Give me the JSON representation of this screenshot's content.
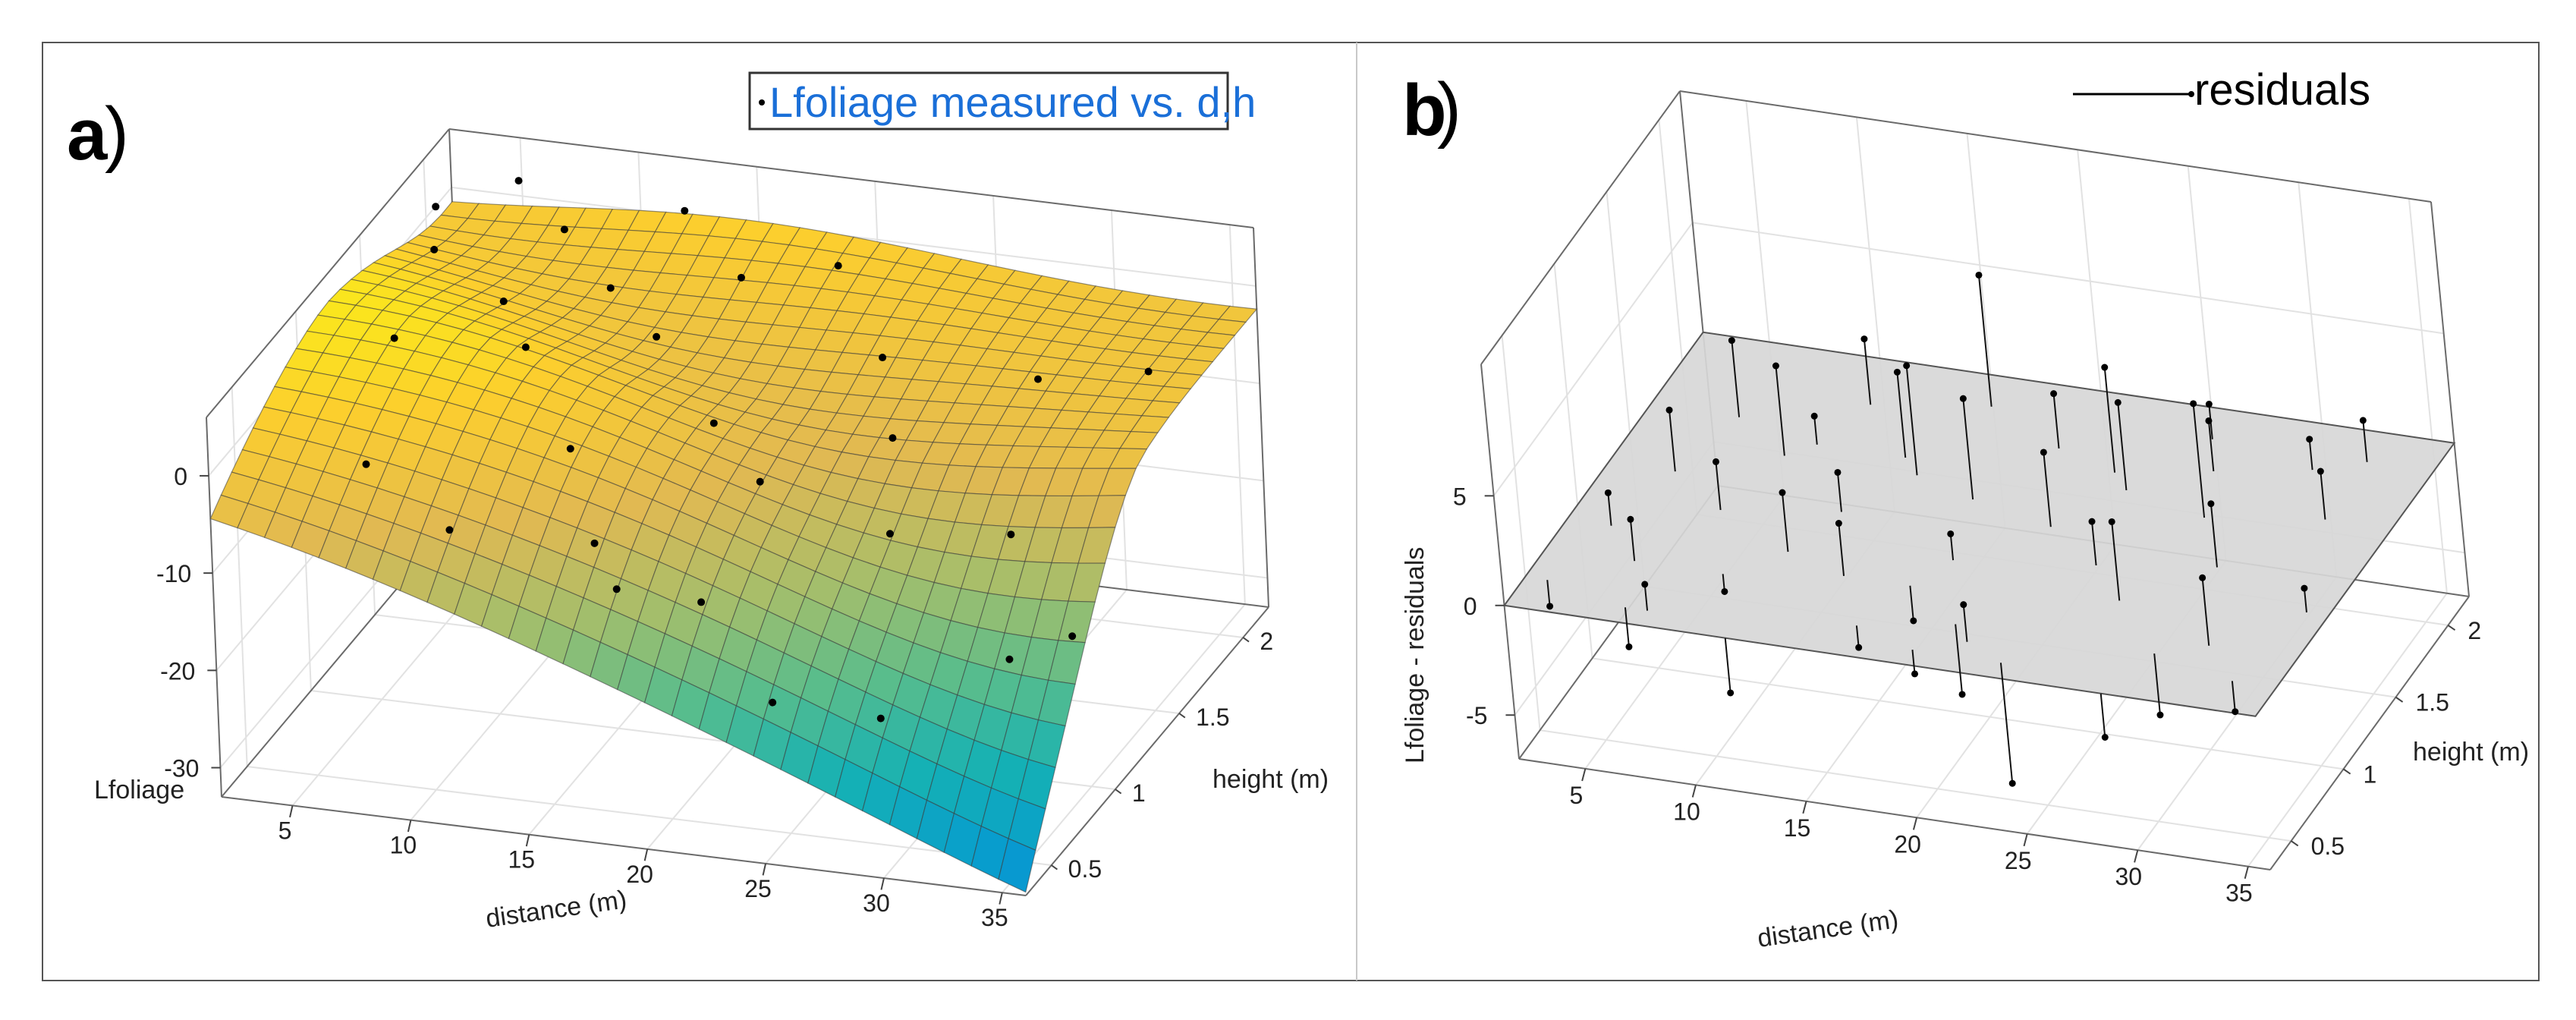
{
  "figure": {
    "panel_a_label": "a",
    "panel_b_label": "b"
  },
  "chart_data": [
    {
      "type": "surface3d",
      "panel": "a",
      "legend": "Lfoliage measured vs. d,h",
      "zlabel": "Lfoliage",
      "xlabel": "distance (m)",
      "ylabel": "height (m)",
      "x_ticks": [
        5,
        10,
        15,
        20,
        25,
        30,
        35
      ],
      "y_ticks": [
        0.5,
        1,
        1.5,
        2
      ],
      "z_ticks": [
        0,
        -10,
        -20,
        -30
      ],
      "xlim": [
        2,
        36
      ],
      "ylim": [
        0.3,
        2.2
      ],
      "zlim": [
        -33,
        6
      ],
      "colormap": "parula",
      "measured_points": [
        [
          3,
          1.9,
          3
        ],
        [
          4,
          1.7,
          2
        ],
        [
          6,
          2.0,
          5
        ],
        [
          8,
          1.5,
          1
        ],
        [
          9,
          1.8,
          4
        ],
        [
          10,
          1.3,
          0
        ],
        [
          12,
          1.6,
          2
        ],
        [
          13,
          2.0,
          4
        ],
        [
          15,
          1.4,
          1
        ],
        [
          17,
          1.7,
          3
        ],
        [
          19,
          1.1,
          -2
        ],
        [
          20,
          1.9,
          2
        ],
        [
          22,
          0.9,
          -4
        ],
        [
          24,
          1.5,
          0
        ],
        [
          26,
          1.2,
          -3
        ],
        [
          28,
          0.8,
          -6
        ],
        [
          30,
          1.6,
          -2
        ],
        [
          32,
          1.0,
          -8
        ],
        [
          34,
          0.6,
          -14
        ],
        [
          33,
          1.9,
          -5
        ],
        [
          7,
          0.6,
          -2
        ],
        [
          11,
          0.5,
          -6
        ],
        [
          16,
          0.7,
          -9
        ],
        [
          21,
          0.6,
          -12
        ],
        [
          25,
          0.4,
          -18
        ],
        [
          14,
          0.9,
          -3
        ],
        [
          18,
          0.5,
          -10
        ],
        [
          29,
          0.5,
          -20
        ],
        [
          35,
          0.9,
          -16
        ],
        [
          5,
          1.2,
          1
        ]
      ]
    },
    {
      "type": "scatter3d-residuals",
      "panel": "b",
      "legend": "residuals",
      "zlabel": "Lfoliage - residuals",
      "xlabel": "distance (m)",
      "ylabel": "height (m)",
      "x_ticks": [
        5,
        10,
        15,
        20,
        25,
        30,
        35
      ],
      "y_ticks": [
        0.5,
        1,
        1.5,
        2
      ],
      "z_ticks": [
        5,
        0,
        -5
      ],
      "xlim": [
        2,
        36
      ],
      "ylim": [
        0.3,
        2.2
      ],
      "zlim": [
        -7,
        11
      ],
      "plane_z": 0,
      "residuals": [
        [
          3,
          0.5,
          -1.2
        ],
        [
          4,
          0.9,
          1.5
        ],
        [
          5,
          1.3,
          2.8
        ],
        [
          6,
          1.7,
          3.5
        ],
        [
          7,
          0.4,
          -1.8
        ],
        [
          8,
          1.1,
          2.2
        ],
        [
          9,
          1.5,
          4.1
        ],
        [
          10,
          0.7,
          -0.8
        ],
        [
          11,
          1.9,
          3.0
        ],
        [
          12,
          0.3,
          -2.5
        ],
        [
          13,
          1.2,
          1.8
        ],
        [
          14,
          1.6,
          3.9
        ],
        [
          15,
          0.8,
          2.4
        ],
        [
          16,
          2.0,
          6.0
        ],
        [
          17,
          0.5,
          -1.0
        ],
        [
          18,
          1.4,
          4.6
        ],
        [
          19,
          1.0,
          1.2
        ],
        [
          20,
          1.8,
          2.5
        ],
        [
          21,
          0.6,
          -3.2
        ],
        [
          22,
          1.3,
          3.4
        ],
        [
          23,
          1.7,
          4.8
        ],
        [
          24,
          0.4,
          -5.5
        ],
        [
          25,
          1.1,
          2.0
        ],
        [
          26,
          2.0,
          1.6
        ],
        [
          27,
          0.9,
          3.6
        ],
        [
          28,
          1.5,
          5.2
        ],
        [
          29,
          0.3,
          -2.0
        ],
        [
          30,
          1.2,
          2.9
        ],
        [
          31,
          1.9,
          1.4
        ],
        [
          32,
          0.7,
          3.1
        ],
        [
          33,
          1.6,
          2.2
        ],
        [
          34,
          0.5,
          -1.4
        ],
        [
          35,
          1.0,
          1.1
        ],
        [
          6,
          0.7,
          1.9
        ],
        [
          12,
          0.9,
          2.7
        ],
        [
          18,
          0.8,
          -1.6
        ],
        [
          24,
          1.6,
          4.0
        ],
        [
          30,
          0.6,
          -2.8
        ],
        [
          10,
          1.6,
          1.3
        ],
        [
          20,
          0.4,
          -1.1
        ],
        [
          27,
          1.8,
          2.3
        ],
        [
          15,
          1.5,
          5.0
        ],
        [
          22,
          0.5,
          1.7
        ],
        [
          33,
          2.0,
          1.9
        ],
        [
          8,
          0.4,
          1.2
        ]
      ]
    }
  ]
}
